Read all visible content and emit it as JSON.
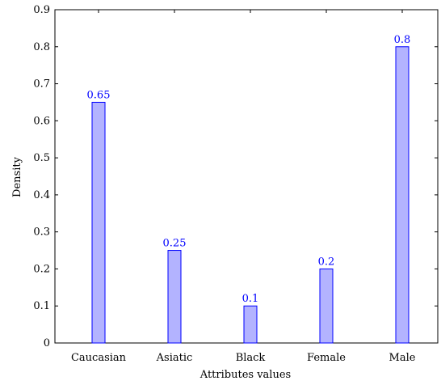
{
  "chart_data": {
    "type": "bar",
    "title": "",
    "xlabel": "Attributes values",
    "ylabel": "Density",
    "categories": [
      "Caucasian",
      "Asiatic",
      "Black",
      "Female",
      "Male"
    ],
    "values": [
      0.65,
      0.25,
      0.1,
      0.2,
      0.8
    ],
    "data_labels": [
      "0.65",
      "0.25",
      "0.1",
      "0.2",
      "0.8"
    ],
    "ylim": [
      0,
      0.9
    ],
    "yticks": [
      {
        "value": 0,
        "label": "0"
      },
      {
        "value": 0.1,
        "label": "0.1"
      },
      {
        "value": 0.2,
        "label": "0.2"
      },
      {
        "value": 0.3,
        "label": "0.3"
      },
      {
        "value": 0.4,
        "label": "0.4"
      },
      {
        "value": 0.5,
        "label": "0.5"
      },
      {
        "value": 0.6,
        "label": "0.6"
      },
      {
        "value": 0.7,
        "label": "0.7"
      },
      {
        "value": 0.8,
        "label": "0.8"
      },
      {
        "value": 0.9,
        "label": "0.9"
      }
    ],
    "grid": false,
    "colors": {
      "bar_fill": "#b3b3ff",
      "bar_stroke": "#0000ff",
      "data_label": "#0000ff",
      "axis": "#000000"
    }
  }
}
